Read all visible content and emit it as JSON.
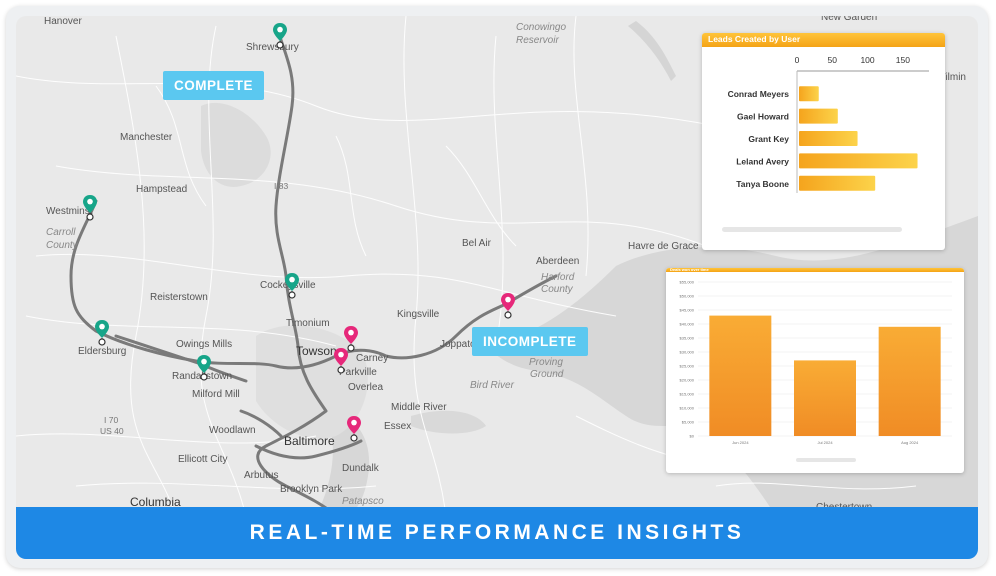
{
  "map": {
    "places": [
      {
        "name": "Hanover",
        "style": "normal"
      },
      {
        "name": "New Garden",
        "style": "normal"
      },
      {
        "name": "Shrewsbury",
        "style": "normal"
      },
      {
        "name": "Conowingo",
        "style": "italic"
      },
      {
        "name": "Reservoir",
        "style": "italic"
      },
      {
        "name": "Wilmin",
        "style": "normal"
      },
      {
        "name": "Manchester",
        "style": "normal"
      },
      {
        "name": "Hampstead",
        "style": "normal"
      },
      {
        "name": "Westminst",
        "style": "normal"
      },
      {
        "name": "Carroll",
        "style": "italic"
      },
      {
        "name": "County",
        "style": "italic"
      },
      {
        "name": "I 83",
        "style": "small"
      },
      {
        "name": "Bel Air",
        "style": "normal"
      },
      {
        "name": "Havre de Grace",
        "style": "normal"
      },
      {
        "name": "Aberdeen",
        "style": "normal"
      },
      {
        "name": "Harford",
        "style": "italic"
      },
      {
        "name": "County",
        "style": "italic"
      },
      {
        "name": "Reisterstown",
        "style": "normal"
      },
      {
        "name": "Cockeysville",
        "style": "normal"
      },
      {
        "name": "Timonium",
        "style": "normal"
      },
      {
        "name": "Kingsville",
        "style": "normal"
      },
      {
        "name": "Owings Mills",
        "style": "normal"
      },
      {
        "name": "Eldersburg",
        "style": "normal"
      },
      {
        "name": "Towson",
        "style": "big"
      },
      {
        "name": "Carney",
        "style": "normal"
      },
      {
        "name": "Joppatowne",
        "style": "normal"
      },
      {
        "name": "Proving",
        "style": "italic"
      },
      {
        "name": "Ground",
        "style": "italic"
      },
      {
        "name": "Randallstown",
        "style": "normal"
      },
      {
        "name": "Parkville",
        "style": "normal"
      },
      {
        "name": "Overlea",
        "style": "normal"
      },
      {
        "name": "Milford Mill",
        "style": "normal"
      },
      {
        "name": "Bird River",
        "style": "italic"
      },
      {
        "name": "Middle River",
        "style": "normal"
      },
      {
        "name": "I 70",
        "style": "small"
      },
      {
        "name": "US 40",
        "style": "small"
      },
      {
        "name": "Woodlawn",
        "style": "normal"
      },
      {
        "name": "Baltimore",
        "style": "big"
      },
      {
        "name": "Essex",
        "style": "normal"
      },
      {
        "name": "Ellicott City",
        "style": "normal"
      },
      {
        "name": "Arbutus",
        "style": "normal"
      },
      {
        "name": "Dundalk",
        "style": "normal"
      },
      {
        "name": "Columbia",
        "style": "big"
      },
      {
        "name": "Brooklyn Park",
        "style": "normal"
      },
      {
        "name": "Patapsco",
        "style": "italic"
      },
      {
        "name": "Chestertown",
        "style": "normal"
      }
    ],
    "status_labels": {
      "complete": "COMPLETE",
      "incomplete": "INCOMPLETE"
    },
    "pins": [
      {
        "status": "complete",
        "color": "#17a589"
      },
      {
        "status": "complete",
        "color": "#17a589"
      },
      {
        "status": "complete",
        "color": "#17a589"
      },
      {
        "status": "complete",
        "color": "#17a589"
      },
      {
        "status": "complete",
        "color": "#17a589"
      },
      {
        "status": "incomplete",
        "color": "#e6287a"
      },
      {
        "status": "incomplete",
        "color": "#e6287a"
      },
      {
        "status": "incomplete",
        "color": "#e6287a"
      },
      {
        "status": "incomplete",
        "color": "#e6287a"
      }
    ]
  },
  "chart_data": [
    {
      "type": "bar",
      "orientation": "horizontal",
      "title": "Leads Created by User",
      "categories": [
        "Conrad Meyers",
        "Gael Howard",
        "Grant Key",
        "Leland Avery",
        "Tanya Boone"
      ],
      "values": [
        28,
        55,
        83,
        168,
        108
      ],
      "xlim": [
        0,
        180
      ],
      "xticks": [
        0,
        50,
        100,
        150
      ],
      "grid": false,
      "color": "#f8b72c"
    },
    {
      "type": "bar",
      "title": "Deals won over time",
      "categories": [
        "Jun 2024",
        "Jul 2024",
        "Aug 2024"
      ],
      "values": [
        43000,
        27000,
        39000
      ],
      "ylim": [
        0,
        55000
      ],
      "yticks": [
        "$0",
        "$5,000",
        "$10,000",
        "$15,000",
        "$20,000",
        "$25,000",
        "$30,000",
        "$35,000",
        "$40,000",
        "$45,000",
        "$50,000",
        "$55,000"
      ],
      "grid": true,
      "color": "#f5a12c"
    }
  ],
  "banner": {
    "text": "REAL-TIME PERFORMANCE INSIGHTS"
  },
  "colors": {
    "banner": "#1e88e5",
    "status_tag": "#5bc8f0",
    "complete_pin": "#17a589",
    "incomplete_pin": "#e6287a"
  }
}
